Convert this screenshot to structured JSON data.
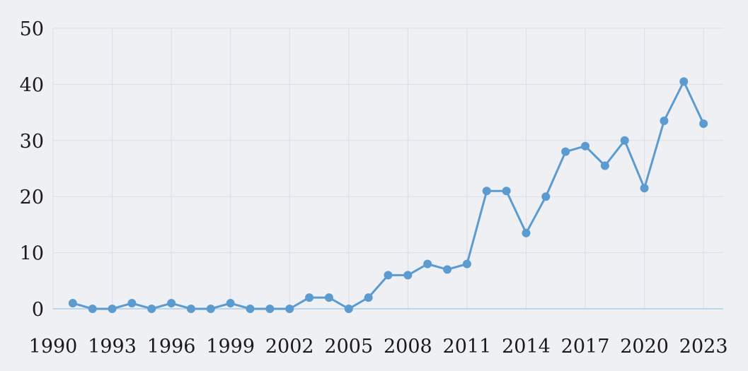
{
  "chart_data": {
    "type": "line",
    "title": "",
    "xlabel": "",
    "ylabel": "",
    "x_ticks": [
      "1990",
      "1993",
      "1996",
      "1999",
      "2002",
      "2005",
      "2008",
      "2011",
      "2014",
      "2017",
      "2020",
      "2023"
    ],
    "y_ticks": [
      "0",
      "10",
      "20",
      "30",
      "40",
      "50"
    ],
    "xlim": [
      1990,
      2024
    ],
    "ylim": [
      0,
      50
    ],
    "grid": true,
    "legend": "none",
    "colors": {
      "line": "#5b9bd0",
      "grid": "#dcdde6",
      "axis": "#bcd6ea",
      "background": "#eff0f4"
    },
    "series": [
      {
        "x": [
          1991,
          1992,
          1993,
          1994,
          1995,
          1996,
          1997,
          1998,
          1999,
          2000,
          2001,
          2002,
          2003,
          2004,
          2005,
          2006,
          2007,
          2008,
          2009,
          2010,
          2011,
          2012,
          2013,
          2014,
          2015,
          2016,
          2017,
          2018,
          2019,
          2020,
          2021,
          2022,
          2023
        ],
        "values": [
          1,
          0,
          0,
          1,
          0,
          1,
          0,
          0,
          1,
          0,
          0,
          0,
          2,
          2,
          0,
          2,
          6,
          6,
          8,
          7,
          8,
          21,
          21,
          13.5,
          20,
          28,
          29,
          25.5,
          30,
          21.5,
          33.5,
          40.5,
          33
        ]
      }
    ]
  }
}
